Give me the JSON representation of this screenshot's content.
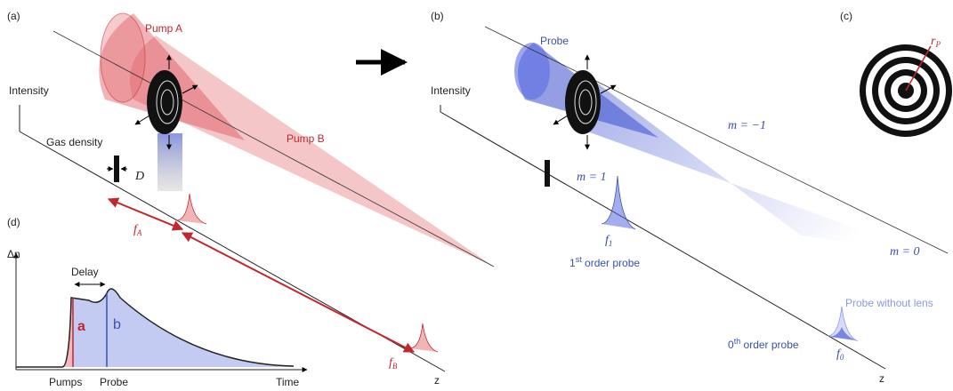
{
  "panel_a": {
    "label": "(a)",
    "pump_a": "Pump A",
    "pump_b": "Pump B",
    "intensity": "Intensity",
    "gas_density": "Gas density",
    "d": "D",
    "f_a": {
      "base": "f",
      "sub": "A"
    },
    "f_b": {
      "base": "f",
      "sub": "B"
    },
    "z": "z"
  },
  "panel_b": {
    "label": "(b)",
    "probe": "Probe",
    "intensity": "Intensity",
    "m_minus": "m = −1",
    "m_plus": "m = 1",
    "m_zero": "m = 0",
    "f_1": {
      "base": "f",
      "sub": "1"
    },
    "first_order": {
      "base": "1",
      "sup": "st",
      "rest": " order probe"
    },
    "without_lens": "Probe without lens",
    "zeroth_order": {
      "base": "0",
      "sup": "th",
      "rest": " order probe"
    },
    "f_0": {
      "base": "f",
      "sub": "0"
    },
    "z": "z"
  },
  "panel_c": {
    "label": "(c)",
    "r_p": {
      "base": "r",
      "sub": "P"
    }
  },
  "panel_d": {
    "label": "(d)",
    "delta_n": "Δn",
    "delay": "Delay",
    "a": "a",
    "b": "b",
    "pumps": "Pumps",
    "probe": "Probe",
    "time": "Time"
  }
}
